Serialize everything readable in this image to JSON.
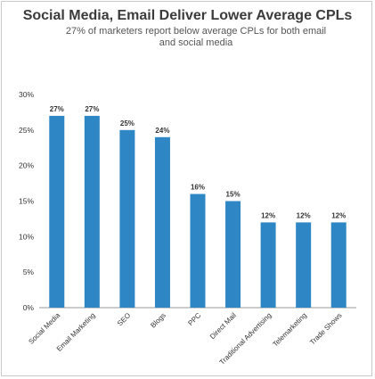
{
  "chart_data": {
    "type": "bar",
    "title": "Social Media, Email Deliver Lower Average CPLs",
    "subtitle": "27% of marketers report below average CPLs for both email and social media",
    "categories": [
      "Social Media",
      "Email Marketing",
      "SEO",
      "Blogs",
      "PPC",
      "Direct Mail",
      "Traditional Advertising",
      "Telemarketing",
      "Trade Shows"
    ],
    "values": [
      27,
      27,
      25,
      24,
      16,
      15,
      12,
      12,
      12
    ],
    "data_labels": [
      "27%",
      "27%",
      "25%",
      "24%",
      "16%",
      "15%",
      "12%",
      "12%",
      "12%"
    ],
    "yticks": [
      "0%",
      "5%",
      "10%",
      "15%",
      "20%",
      "25%",
      "30%"
    ],
    "ylim": [
      0,
      30
    ],
    "xlabel": "",
    "ylabel": "",
    "grid": false,
    "bar_color": "#2f86c5",
    "axis_color": "#999999"
  }
}
